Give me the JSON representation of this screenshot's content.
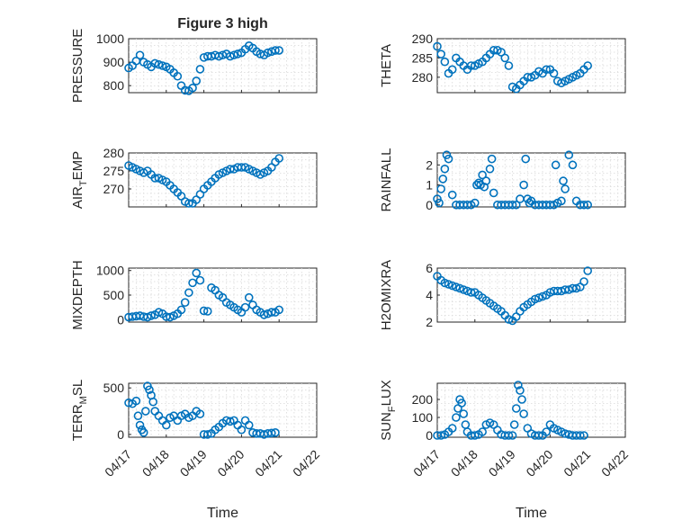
{
  "figure": {
    "title": "Figure 3 high",
    "marker_color": "#0072bd",
    "background": "#ffffff",
    "grid": true
  },
  "chart_data": [
    {
      "type": "scatter",
      "ylabel": "PRESSURE",
      "title": "Figure 3 high",
      "ylim": [
        770,
        1000
      ],
      "yticks": [
        800,
        900,
        1000
      ],
      "xlim": [
        "04/17",
        "04/22"
      ],
      "xticklabels": [
        "04/17",
        "04/18",
        "04/19",
        "04/20",
        "04/21",
        "04/22"
      ],
      "x": [
        0.0,
        0.1,
        0.2,
        0.3,
        0.4,
        0.5,
        0.6,
        0.7,
        0.8,
        0.9,
        1.0,
        1.1,
        1.2,
        1.3,
        1.4,
        1.5,
        1.6,
        1.7,
        1.8,
        1.9,
        2.0,
        2.1,
        2.2,
        2.3,
        2.4,
        2.5,
        2.6,
        2.7,
        2.8,
        2.9,
        3.0,
        3.1,
        3.2,
        3.3,
        3.4,
        3.5,
        3.6,
        3.7,
        3.8,
        3.9,
        4.0
      ],
      "y": [
        875,
        885,
        905,
        930,
        900,
        890,
        880,
        895,
        890,
        885,
        880,
        870,
        855,
        840,
        800,
        780,
        778,
        790,
        820,
        870,
        920,
        925,
        925,
        930,
        925,
        930,
        935,
        925,
        930,
        935,
        940,
        955,
        970,
        960,
        945,
        935,
        930,
        940,
        945,
        950,
        950
      ]
    },
    {
      "type": "scatter",
      "ylabel": "THETA",
      "ylim": [
        276,
        290
      ],
      "yticks": [
        280,
        285,
        290
      ],
      "xlim": [
        "04/17",
        "04/22"
      ],
      "xticklabels": [
        "04/17",
        "04/18",
        "04/19",
        "04/20",
        "04/21",
        "04/22"
      ],
      "x": [
        0.0,
        0.1,
        0.2,
        0.3,
        0.4,
        0.5,
        0.6,
        0.7,
        0.8,
        0.9,
        1.0,
        1.1,
        1.2,
        1.3,
        1.4,
        1.5,
        1.6,
        1.7,
        1.8,
        1.9,
        2.0,
        2.1,
        2.2,
        2.3,
        2.4,
        2.5,
        2.6,
        2.7,
        2.8,
        2.9,
        3.0,
        3.1,
        3.2,
        3.3,
        3.4,
        3.5,
        3.6,
        3.7,
        3.8,
        3.9,
        4.0
      ],
      "y": [
        288,
        286,
        284,
        281,
        282,
        285,
        284,
        283,
        282,
        283,
        283,
        283.5,
        284,
        285,
        286,
        287,
        287,
        286.5,
        285,
        283,
        277.5,
        277,
        278,
        279,
        280,
        280,
        280.5,
        281.5,
        281,
        282,
        282,
        281,
        279,
        278.5,
        279,
        279.5,
        280,
        280.5,
        281,
        282,
        283
      ]
    },
    {
      "type": "scatter",
      "ylabel": "AIR_TEMP",
      "ylim": [
        265,
        280
      ],
      "yticks": [
        270,
        275,
        280
      ],
      "xlim": [
        "04/17",
        "04/22"
      ],
      "xticklabels": [
        "04/17",
        "04/18",
        "04/19",
        "04/20",
        "04/21",
        "04/22"
      ],
      "x": [
        0.0,
        0.1,
        0.2,
        0.3,
        0.4,
        0.5,
        0.6,
        0.7,
        0.8,
        0.9,
        1.0,
        1.1,
        1.2,
        1.3,
        1.4,
        1.5,
        1.6,
        1.7,
        1.8,
        1.9,
        2.0,
        2.1,
        2.2,
        2.3,
        2.4,
        2.5,
        2.6,
        2.7,
        2.8,
        2.9,
        3.0,
        3.1,
        3.2,
        3.3,
        3.4,
        3.5,
        3.6,
        3.7,
        3.8,
        3.9,
        4.0
      ],
      "y": [
        276.5,
        276,
        275.5,
        275,
        274.5,
        275,
        274,
        273,
        273,
        272.5,
        272,
        271,
        270,
        269,
        268,
        266.5,
        266,
        266,
        267,
        268.5,
        270,
        271,
        272,
        273,
        274,
        274.5,
        275,
        275.5,
        275.5,
        276,
        276,
        276,
        275.5,
        275,
        274.5,
        274,
        274.5,
        275,
        276,
        277.5,
        278.5
      ]
    },
    {
      "type": "scatter",
      "ylabel": "RAINFALL",
      "ylim": [
        -0.1,
        2.6
      ],
      "yticks": [
        0,
        1,
        2
      ],
      "xlim": [
        "04/17",
        "04/22"
      ],
      "xticklabels": [
        "04/17",
        "04/18",
        "04/19",
        "04/20",
        "04/21",
        "04/22"
      ],
      "x": [
        0.0,
        0.05,
        0.1,
        0.15,
        0.2,
        0.25,
        0.3,
        0.4,
        0.5,
        0.6,
        0.7,
        0.8,
        0.9,
        1.0,
        1.05,
        1.1,
        1.15,
        1.2,
        1.25,
        1.3,
        1.4,
        1.45,
        1.5,
        1.6,
        1.7,
        1.8,
        1.9,
        2.0,
        2.1,
        2.2,
        2.3,
        2.35,
        2.4,
        2.45,
        2.5,
        2.6,
        2.7,
        2.8,
        2.9,
        3.0,
        3.1,
        3.15,
        3.2,
        3.3,
        3.35,
        3.4,
        3.5,
        3.6,
        3.7,
        3.8,
        3.9,
        4.0
      ],
      "y": [
        0.3,
        0.1,
        0.8,
        1.3,
        1.8,
        2.5,
        2.3,
        0.5,
        0,
        0,
        0,
        0,
        0,
        0.1,
        1.0,
        1.1,
        1.0,
        1.5,
        0.9,
        1.2,
        1.8,
        2.3,
        0.6,
        0,
        0,
        0,
        0,
        0,
        0,
        0.3,
        1.0,
        2.3,
        0.3,
        0.1,
        0.2,
        0,
        0,
        0,
        0,
        0,
        0,
        2.0,
        0.1,
        0.2,
        1.2,
        0.8,
        2.5,
        2.0,
        0.2,
        0,
        0,
        0
      ]
    },
    {
      "type": "scatter",
      "ylabel": "MIXDEPTH",
      "ylim": [
        -50,
        1050
      ],
      "yticks": [
        0,
        500,
        1000
      ],
      "xlim": [
        "04/17",
        "04/22"
      ],
      "xticklabels": [
        "04/17",
        "04/18",
        "04/19",
        "04/20",
        "04/21",
        "04/22"
      ],
      "x": [
        0.0,
        0.1,
        0.2,
        0.3,
        0.4,
        0.5,
        0.6,
        0.7,
        0.8,
        0.9,
        1.0,
        1.1,
        1.2,
        1.3,
        1.4,
        1.5,
        1.6,
        1.7,
        1.8,
        1.9,
        2.0,
        2.1,
        2.2,
        2.3,
        2.4,
        2.5,
        2.6,
        2.7,
        2.8,
        2.9,
        3.0,
        3.1,
        3.2,
        3.3,
        3.4,
        3.5,
        3.6,
        3.7,
        3.8,
        3.9,
        4.0
      ],
      "y": [
        50,
        60,
        70,
        80,
        60,
        50,
        80,
        100,
        150,
        120,
        60,
        50,
        80,
        120,
        200,
        350,
        550,
        750,
        950,
        800,
        180,
        170,
        650,
        600,
        500,
        450,
        350,
        300,
        250,
        200,
        150,
        250,
        450,
        300,
        200,
        150,
        100,
        120,
        150,
        150,
        200
      ]
    },
    {
      "type": "scatter",
      "ylabel": "H2OMIXRA",
      "ylim": [
        2,
        6
      ],
      "yticks": [
        2,
        4,
        6
      ],
      "xlim": [
        "04/17",
        "04/22"
      ],
      "xticklabels": [
        "04/17",
        "04/18",
        "04/19",
        "04/20",
        "04/21",
        "04/22"
      ],
      "x": [
        0.0,
        0.1,
        0.2,
        0.3,
        0.4,
        0.5,
        0.6,
        0.7,
        0.8,
        0.9,
        1.0,
        1.1,
        1.2,
        1.3,
        1.4,
        1.5,
        1.6,
        1.7,
        1.8,
        1.9,
        2.0,
        2.1,
        2.2,
        2.3,
        2.4,
        2.5,
        2.6,
        2.7,
        2.8,
        2.9,
        3.0,
        3.1,
        3.2,
        3.3,
        3.4,
        3.5,
        3.6,
        3.7,
        3.8,
        3.9,
        4.0
      ],
      "y": [
        5.4,
        5.1,
        4.9,
        4.8,
        4.7,
        4.6,
        4.5,
        4.4,
        4.3,
        4.2,
        4.2,
        4.0,
        3.8,
        3.6,
        3.4,
        3.2,
        3.0,
        2.8,
        2.5,
        2.2,
        2.1,
        2.4,
        2.8,
        3.1,
        3.3,
        3.5,
        3.7,
        3.8,
        3.9,
        4.0,
        4.2,
        4.3,
        4.3,
        4.3,
        4.4,
        4.4,
        4.5,
        4.5,
        4.6,
        5.0,
        5.8
      ]
    },
    {
      "type": "scatter",
      "ylabel": "TERR_MSL",
      "ylim": [
        -30,
        550
      ],
      "yticks": [
        0,
        500
      ],
      "xlim": [
        "04/17",
        "04/22"
      ],
      "xticklabels": [
        "04/17",
        "04/18",
        "04/19",
        "04/20",
        "04/21",
        "04/22"
      ],
      "x": [
        0.0,
        0.1,
        0.2,
        0.25,
        0.3,
        0.35,
        0.4,
        0.45,
        0.5,
        0.55,
        0.6,
        0.65,
        0.7,
        0.8,
        0.9,
        1.0,
        1.1,
        1.2,
        1.3,
        1.4,
        1.5,
        1.6,
        1.7,
        1.8,
        1.9,
        2.0,
        2.1,
        2.2,
        2.3,
        2.4,
        2.5,
        2.6,
        2.7,
        2.8,
        2.9,
        3.0,
        3.1,
        3.2,
        3.3,
        3.4,
        3.5,
        3.6,
        3.7,
        3.8,
        3.9
      ],
      "y": [
        340,
        330,
        360,
        200,
        100,
        50,
        20,
        250,
        520,
        480,
        420,
        350,
        250,
        200,
        150,
        100,
        180,
        200,
        150,
        200,
        220,
        180,
        200,
        250,
        220,
        0,
        0,
        10,
        50,
        80,
        120,
        150,
        140,
        150,
        100,
        50,
        150,
        100,
        20,
        10,
        10,
        0,
        10,
        15,
        20
      ]
    },
    {
      "type": "scatter",
      "ylabel": "SUN_FLUX",
      "ylim": [
        -10,
        290
      ],
      "yticks": [
        0,
        100,
        200
      ],
      "xlim": [
        "04/17",
        "04/22"
      ],
      "xticklabels": [
        "04/17",
        "04/18",
        "04/19",
        "04/20",
        "04/21",
        "04/22"
      ],
      "x": [
        0.0,
        0.1,
        0.2,
        0.3,
        0.4,
        0.5,
        0.55,
        0.6,
        0.65,
        0.7,
        0.75,
        0.8,
        0.9,
        1.0,
        1.1,
        1.2,
        1.3,
        1.4,
        1.5,
        1.6,
        1.7,
        1.8,
        1.9,
        2.0,
        2.05,
        2.1,
        2.15,
        2.2,
        2.25,
        2.3,
        2.4,
        2.5,
        2.6,
        2.7,
        2.8,
        2.9,
        3.0,
        3.1,
        3.2,
        3.3,
        3.4,
        3.5,
        3.6,
        3.7,
        3.8,
        3.9
      ],
      "y": [
        0,
        0,
        5,
        20,
        40,
        100,
        150,
        200,
        180,
        120,
        60,
        20,
        0,
        0,
        5,
        20,
        60,
        70,
        60,
        30,
        5,
        0,
        0,
        0,
        60,
        150,
        280,
        250,
        200,
        120,
        40,
        10,
        0,
        0,
        0,
        20,
        60,
        40,
        30,
        20,
        10,
        5,
        0,
        0,
        0,
        0
      ]
    }
  ],
  "xlabel_left": "Time",
  "xlabel_right": "Time"
}
